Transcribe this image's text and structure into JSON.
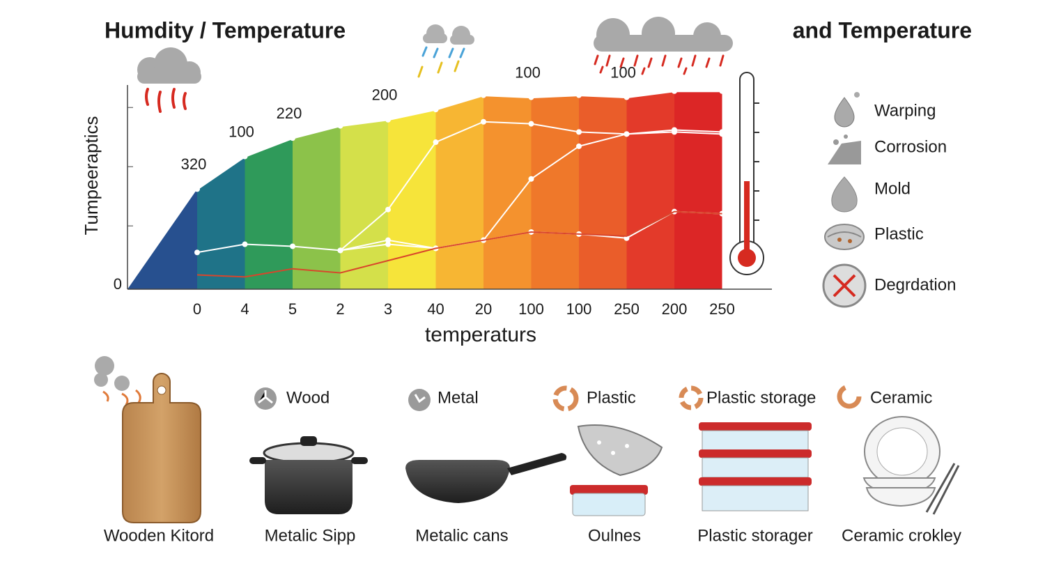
{
  "chart_data": {
    "type": "area",
    "title": "Humdity / Temperature",
    "ylabel": "Tumpeeraptics",
    "xlabel": "temperaturs",
    "categories": [
      "0",
      "4",
      "5",
      "2",
      "3",
      "40",
      "20",
      "100",
      "100",
      "250",
      "200",
      "250"
    ],
    "band_colors": [
      "#27508f",
      "#1f7388",
      "#2f9a5a",
      "#8cc24a",
      "#d4e04a",
      "#f6e43a",
      "#f7b633",
      "#f4922e",
      "#ef782a",
      "#ea5d2a",
      "#e33a2a",
      "#dc2626"
    ],
    "series": [
      {
        "name": "Humdity",
        "color": "#ffffff",
        "values": [
          49,
          65,
          74,
          80,
          83,
          88,
          95,
          94,
          95,
          94,
          97,
          97
        ]
      },
      {
        "color": "#ffffff",
        "values": [
          18,
          22,
          21,
          19,
          24,
          20,
          24,
          28,
          27,
          25,
          38,
          37
        ]
      },
      {
        "color": "#ffffff",
        "values": [
          null,
          null,
          null,
          19,
          39,
          72,
          82,
          81,
          77,
          76,
          77,
          76
        ]
      },
      {
        "color": "#ffffff",
        "values": [
          null,
          null,
          null,
          19,
          22,
          20,
          24,
          54,
          70,
          76,
          78,
          77
        ]
      },
      {
        "color": "#d9452b",
        "values": [
          7,
          6,
          10,
          8,
          14,
          20,
          24,
          28,
          27,
          26,
          38,
          37
        ]
      }
    ],
    "annotations": [
      "320",
      "100",
      "220",
      "200",
      "100",
      "100"
    ],
    "ylim": [
      0,
      100
    ],
    "yticks": [
      0
    ],
    "minor_yticks": [
      31,
      60,
      89
    ]
  },
  "title_right": "and Temperature",
  "legend": [
    "Warping",
    "Corrosion",
    "Mold",
    "Plastic",
    "Degrdation"
  ],
  "materials": {
    "labels": [
      "Wood",
      "Metal",
      "Plastic",
      "Plastic storage",
      "Ceramic"
    ],
    "captions": [
      "Wooden Kitord",
      "Metalic Sipp",
      "Metalic cans",
      "Oulnes",
      "Plastic storager",
      "Ceramic crokley"
    ]
  }
}
